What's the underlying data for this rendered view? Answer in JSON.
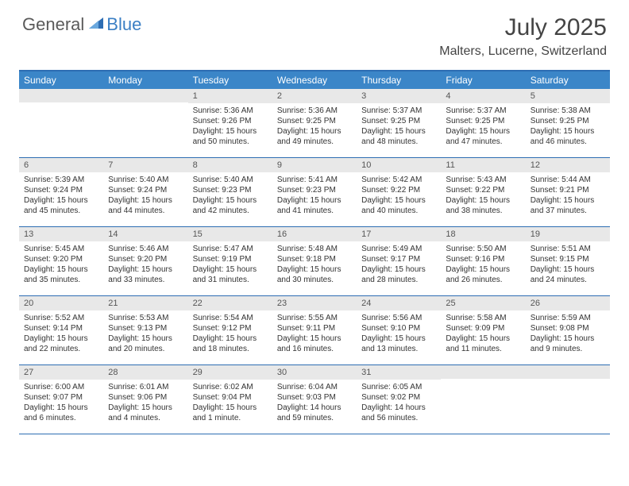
{
  "logo": {
    "general": "General",
    "blue": "Blue"
  },
  "title": "July 2025",
  "location": "Malters, Lucerne, Switzerland",
  "colors": {
    "header_bg": "#3b86c8",
    "header_border": "#2d6db3",
    "daynum_bg": "#e8e8e8",
    "text": "#333333",
    "logo_gray": "#5a5a5a",
    "logo_blue": "#3b7fc4"
  },
  "day_headers": [
    "Sunday",
    "Monday",
    "Tuesday",
    "Wednesday",
    "Thursday",
    "Friday",
    "Saturday"
  ],
  "weeks": [
    [
      {
        "blank": true
      },
      {
        "blank": true
      },
      {
        "n": "1",
        "sunrise": "Sunrise: 5:36 AM",
        "sunset": "Sunset: 9:26 PM",
        "day1": "Daylight: 15 hours",
        "day2": "and 50 minutes."
      },
      {
        "n": "2",
        "sunrise": "Sunrise: 5:36 AM",
        "sunset": "Sunset: 9:25 PM",
        "day1": "Daylight: 15 hours",
        "day2": "and 49 minutes."
      },
      {
        "n": "3",
        "sunrise": "Sunrise: 5:37 AM",
        "sunset": "Sunset: 9:25 PM",
        "day1": "Daylight: 15 hours",
        "day2": "and 48 minutes."
      },
      {
        "n": "4",
        "sunrise": "Sunrise: 5:37 AM",
        "sunset": "Sunset: 9:25 PM",
        "day1": "Daylight: 15 hours",
        "day2": "and 47 minutes."
      },
      {
        "n": "5",
        "sunrise": "Sunrise: 5:38 AM",
        "sunset": "Sunset: 9:25 PM",
        "day1": "Daylight: 15 hours",
        "day2": "and 46 minutes."
      }
    ],
    [
      {
        "n": "6",
        "sunrise": "Sunrise: 5:39 AM",
        "sunset": "Sunset: 9:24 PM",
        "day1": "Daylight: 15 hours",
        "day2": "and 45 minutes."
      },
      {
        "n": "7",
        "sunrise": "Sunrise: 5:40 AM",
        "sunset": "Sunset: 9:24 PM",
        "day1": "Daylight: 15 hours",
        "day2": "and 44 minutes."
      },
      {
        "n": "8",
        "sunrise": "Sunrise: 5:40 AM",
        "sunset": "Sunset: 9:23 PM",
        "day1": "Daylight: 15 hours",
        "day2": "and 42 minutes."
      },
      {
        "n": "9",
        "sunrise": "Sunrise: 5:41 AM",
        "sunset": "Sunset: 9:23 PM",
        "day1": "Daylight: 15 hours",
        "day2": "and 41 minutes."
      },
      {
        "n": "10",
        "sunrise": "Sunrise: 5:42 AM",
        "sunset": "Sunset: 9:22 PM",
        "day1": "Daylight: 15 hours",
        "day2": "and 40 minutes."
      },
      {
        "n": "11",
        "sunrise": "Sunrise: 5:43 AM",
        "sunset": "Sunset: 9:22 PM",
        "day1": "Daylight: 15 hours",
        "day2": "and 38 minutes."
      },
      {
        "n": "12",
        "sunrise": "Sunrise: 5:44 AM",
        "sunset": "Sunset: 9:21 PM",
        "day1": "Daylight: 15 hours",
        "day2": "and 37 minutes."
      }
    ],
    [
      {
        "n": "13",
        "sunrise": "Sunrise: 5:45 AM",
        "sunset": "Sunset: 9:20 PM",
        "day1": "Daylight: 15 hours",
        "day2": "and 35 minutes."
      },
      {
        "n": "14",
        "sunrise": "Sunrise: 5:46 AM",
        "sunset": "Sunset: 9:20 PM",
        "day1": "Daylight: 15 hours",
        "day2": "and 33 minutes."
      },
      {
        "n": "15",
        "sunrise": "Sunrise: 5:47 AM",
        "sunset": "Sunset: 9:19 PM",
        "day1": "Daylight: 15 hours",
        "day2": "and 31 minutes."
      },
      {
        "n": "16",
        "sunrise": "Sunrise: 5:48 AM",
        "sunset": "Sunset: 9:18 PM",
        "day1": "Daylight: 15 hours",
        "day2": "and 30 minutes."
      },
      {
        "n": "17",
        "sunrise": "Sunrise: 5:49 AM",
        "sunset": "Sunset: 9:17 PM",
        "day1": "Daylight: 15 hours",
        "day2": "and 28 minutes."
      },
      {
        "n": "18",
        "sunrise": "Sunrise: 5:50 AM",
        "sunset": "Sunset: 9:16 PM",
        "day1": "Daylight: 15 hours",
        "day2": "and 26 minutes."
      },
      {
        "n": "19",
        "sunrise": "Sunrise: 5:51 AM",
        "sunset": "Sunset: 9:15 PM",
        "day1": "Daylight: 15 hours",
        "day2": "and 24 minutes."
      }
    ],
    [
      {
        "n": "20",
        "sunrise": "Sunrise: 5:52 AM",
        "sunset": "Sunset: 9:14 PM",
        "day1": "Daylight: 15 hours",
        "day2": "and 22 minutes."
      },
      {
        "n": "21",
        "sunrise": "Sunrise: 5:53 AM",
        "sunset": "Sunset: 9:13 PM",
        "day1": "Daylight: 15 hours",
        "day2": "and 20 minutes."
      },
      {
        "n": "22",
        "sunrise": "Sunrise: 5:54 AM",
        "sunset": "Sunset: 9:12 PM",
        "day1": "Daylight: 15 hours",
        "day2": "and 18 minutes."
      },
      {
        "n": "23",
        "sunrise": "Sunrise: 5:55 AM",
        "sunset": "Sunset: 9:11 PM",
        "day1": "Daylight: 15 hours",
        "day2": "and 16 minutes."
      },
      {
        "n": "24",
        "sunrise": "Sunrise: 5:56 AM",
        "sunset": "Sunset: 9:10 PM",
        "day1": "Daylight: 15 hours",
        "day2": "and 13 minutes."
      },
      {
        "n": "25",
        "sunrise": "Sunrise: 5:58 AM",
        "sunset": "Sunset: 9:09 PM",
        "day1": "Daylight: 15 hours",
        "day2": "and 11 minutes."
      },
      {
        "n": "26",
        "sunrise": "Sunrise: 5:59 AM",
        "sunset": "Sunset: 9:08 PM",
        "day1": "Daylight: 15 hours",
        "day2": "and 9 minutes."
      }
    ],
    [
      {
        "n": "27",
        "sunrise": "Sunrise: 6:00 AM",
        "sunset": "Sunset: 9:07 PM",
        "day1": "Daylight: 15 hours",
        "day2": "and 6 minutes."
      },
      {
        "n": "28",
        "sunrise": "Sunrise: 6:01 AM",
        "sunset": "Sunset: 9:06 PM",
        "day1": "Daylight: 15 hours",
        "day2": "and 4 minutes."
      },
      {
        "n": "29",
        "sunrise": "Sunrise: 6:02 AM",
        "sunset": "Sunset: 9:04 PM",
        "day1": "Daylight: 15 hours",
        "day2": "and 1 minute."
      },
      {
        "n": "30",
        "sunrise": "Sunrise: 6:04 AM",
        "sunset": "Sunset: 9:03 PM",
        "day1": "Daylight: 14 hours",
        "day2": "and 59 minutes."
      },
      {
        "n": "31",
        "sunrise": "Sunrise: 6:05 AM",
        "sunset": "Sunset: 9:02 PM",
        "day1": "Daylight: 14 hours",
        "day2": "and 56 minutes."
      },
      {
        "blank": true
      },
      {
        "blank": true
      }
    ]
  ]
}
